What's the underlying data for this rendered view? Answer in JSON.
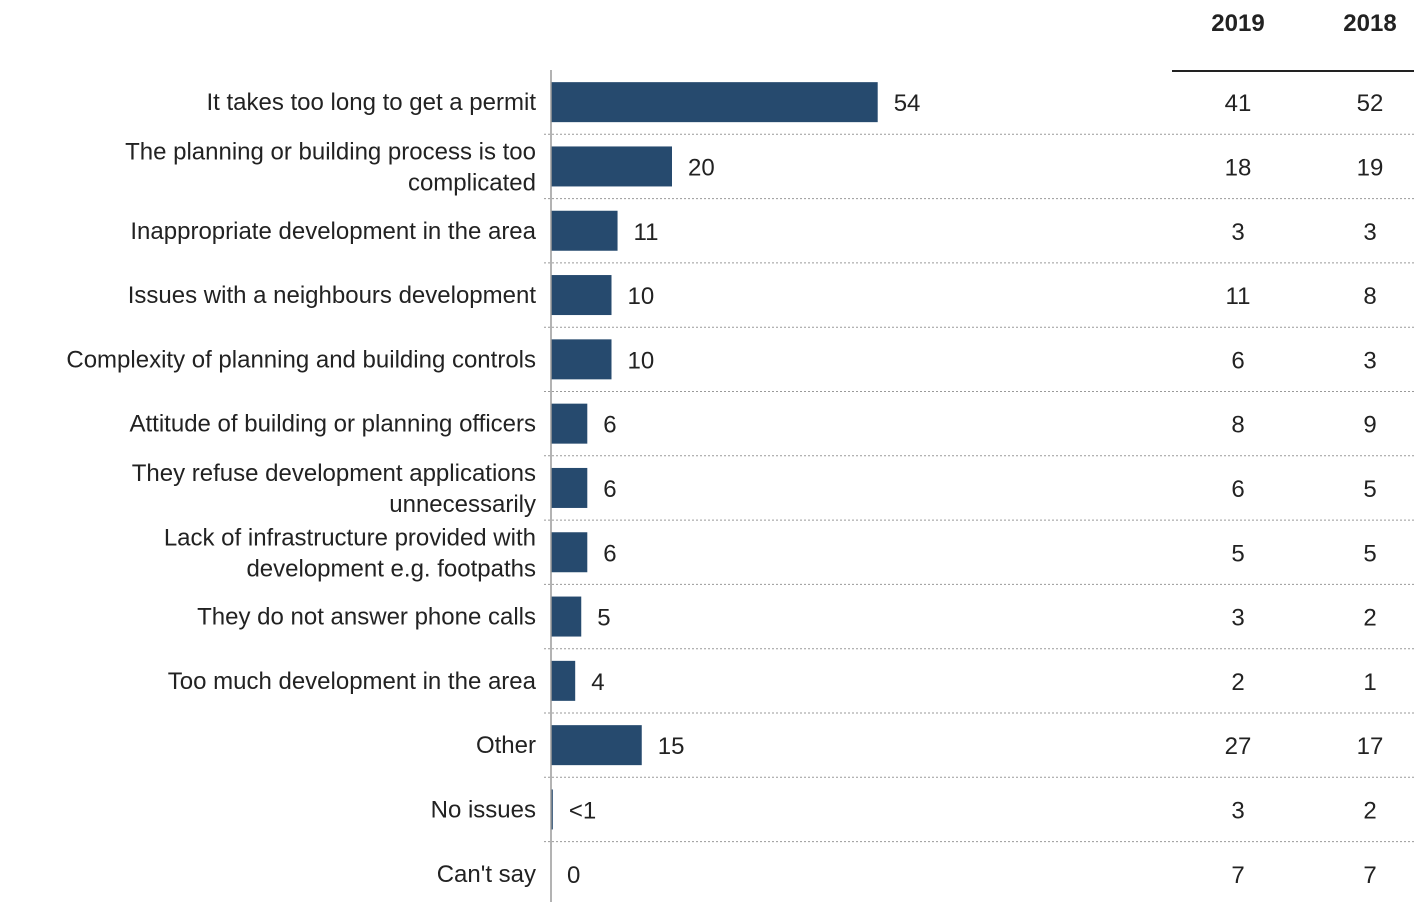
{
  "chart_data": {
    "type": "bar",
    "orientation": "horizontal",
    "title": "",
    "xlabel": "",
    "ylabel": "",
    "xlim": [
      0,
      57
    ],
    "grid": false,
    "bar_color": "#264a6e",
    "categories": [
      "It takes too long to get a permit",
      "The planning or building process is too complicated",
      "Inappropriate development in the area",
      "Issues with a neighbours development",
      "Complexity of planning and building controls",
      "Attitude of building or planning officers",
      "They refuse development applications unnecessarily",
      "Lack of infrastructure provided with development e.g. footpaths",
      "They do not answer phone calls",
      "Too much development in the area",
      "Other",
      "No issues",
      "Can't say"
    ],
    "category_lines": [
      [
        "It takes too long to get a permit"
      ],
      [
        "The planning or building process is too",
        "complicated"
      ],
      [
        "Inappropriate development in the area"
      ],
      [
        "Issues with a neighbours development"
      ],
      [
        "Complexity of planning and building controls"
      ],
      [
        "Attitude of building or planning officers"
      ],
      [
        "They refuse development applications",
        "unnecessarily"
      ],
      [
        "Lack of infrastructure provided with",
        "development e.g. footpaths"
      ],
      [
        "They do not answer phone calls"
      ],
      [
        "Too much development in the area"
      ],
      [
        "Other"
      ],
      [
        "No issues"
      ],
      [
        "Can't say"
      ]
    ],
    "values": [
      54,
      20,
      11,
      10,
      10,
      6,
      6,
      6,
      5,
      4,
      15,
      0.3,
      0
    ],
    "value_labels": [
      "54",
      "20",
      "11",
      "10",
      "10",
      "6",
      "6",
      "6",
      "5",
      "4",
      "15",
      "<1",
      "0"
    ],
    "comparison_columns": [
      {
        "name": "2019",
        "values": [
          "41",
          "18",
          "3",
          "11",
          "6",
          "8",
          "6",
          "5",
          "3",
          "2",
          "27",
          "3",
          "7"
        ]
      },
      {
        "name": "2018",
        "values": [
          "52",
          "19",
          "3",
          "8",
          "3",
          "9",
          "5",
          "5",
          "2",
          "1",
          "17",
          "2",
          "7"
        ]
      }
    ]
  }
}
